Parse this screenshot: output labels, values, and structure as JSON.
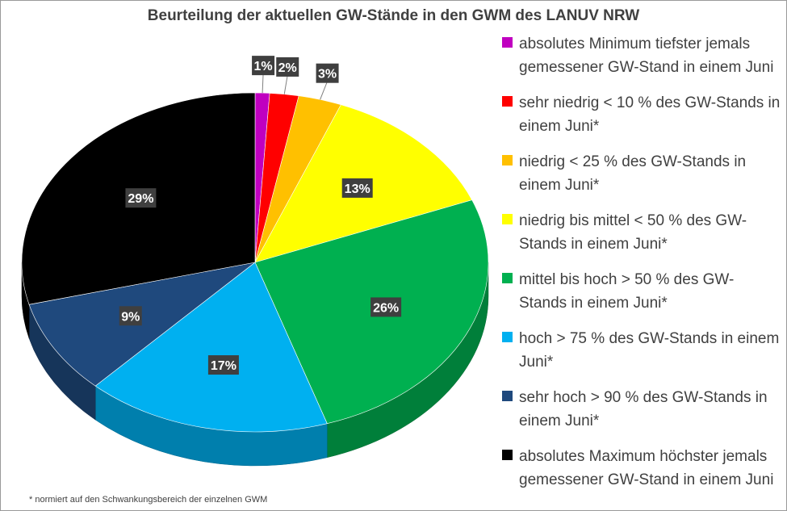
{
  "chart_data": {
    "type": "pie",
    "title": "Beurteilung der aktuellen GW-Stände in den GWM des LANUV NRW",
    "style": "3d",
    "legend_position": "right",
    "slices": [
      {
        "label": "absolutes Minimum  tiefster jemals gemessener GW-Stand in einem Juni",
        "value": 1,
        "data_label": "1%",
        "color": "#c000c0"
      },
      {
        "label": "sehr niedrig  < 10 % des GW-Stands in einem Juni*",
        "value": 2,
        "data_label": "2%",
        "color": "#ff0000"
      },
      {
        "label": "niedrig   < 25 % des GW-Stands in einem Juni*",
        "value": 3,
        "data_label": "3%",
        "color": "#ffc000"
      },
      {
        "label": "niedrig bis mittel  < 50 % des GW-Stands in einem Juni*",
        "value": 13,
        "data_label": "13%",
        "color": "#ffff00"
      },
      {
        "label": "mittel bis hoch  > 50 % des GW-Stands in einem Juni*",
        "value": 26,
        "data_label": "26%",
        "color": "#00b050"
      },
      {
        "label": "hoch  > 75 % des GW-Stands in einem Juni*",
        "value": 17,
        "data_label": "17%",
        "color": "#00b0f0"
      },
      {
        "label": "sehr hoch  > 90 % des GW-Stands in einem Juni*",
        "value": 9,
        "data_label": "9%",
        "color": "#1f497d"
      },
      {
        "label": "absolutes Maximum  höchster jemals gemessener GW-Stand in einem Juni",
        "value": 29,
        "data_label": "29%",
        "color": "#000000"
      }
    ],
    "footnote": "* normiert auf den Schwankungsbereich der einzelnen GWM"
  }
}
